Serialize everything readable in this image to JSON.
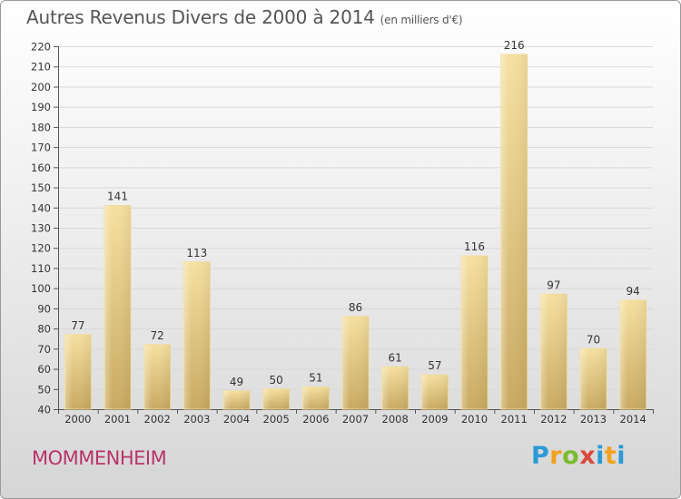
{
  "header": {
    "title": "Autres Revenus Divers de 2000 à 2014",
    "unit": "(en milliers d'€)"
  },
  "footer": {
    "commune": "MOMMENHEIM",
    "logo_letters": [
      "P",
      "r",
      "o",
      "x",
      "i",
      "t",
      "i"
    ],
    "logo_colors": [
      "#2a9ad6",
      "#f2a21a",
      "#7bbb2f",
      "#d94a3f",
      "#2a9ad6",
      "#f2a21a",
      "#2a9ad6"
    ]
  },
  "chart_data": {
    "type": "bar",
    "title": "Autres Revenus Divers de 2000 à 2014",
    "xlabel": "",
    "ylabel": "",
    "categories": [
      "2000",
      "2001",
      "2002",
      "2003",
      "2004",
      "2005",
      "2006",
      "2007",
      "2008",
      "2009",
      "2010",
      "2011",
      "2012",
      "2013",
      "2014"
    ],
    "values": [
      77,
      141,
      72,
      113,
      49,
      50,
      51,
      86,
      61,
      57,
      116,
      216,
      97,
      70,
      94
    ],
    "ylim": [
      40,
      220
    ],
    "yticks": [
      40,
      50,
      60,
      70,
      80,
      90,
      100,
      110,
      120,
      130,
      140,
      150,
      160,
      170,
      180,
      190,
      200,
      210,
      220
    ],
    "grid": true,
    "bar_color": "#e8c97e"
  }
}
